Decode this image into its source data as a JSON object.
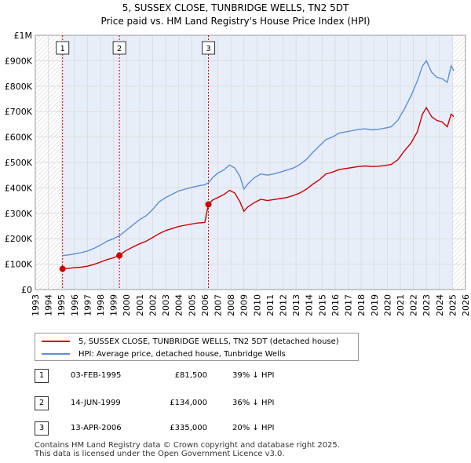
{
  "chart_data": {
    "type": "line",
    "title": "5, SUSSEX CLOSE, TUNBRIDGE WELLS, TN2 5DT",
    "subtitle": "Price paid vs. HM Land Registry's House Price Index (HPI)",
    "xlim": [
      1993,
      2026
    ],
    "ylim": [
      0,
      1000000
    ],
    "x_ticks": [
      "1993",
      "1994",
      "1995",
      "1996",
      "1997",
      "1998",
      "1999",
      "2000",
      "2001",
      "2002",
      "2003",
      "2004",
      "2005",
      "2006",
      "2007",
      "2008",
      "2009",
      "2010",
      "2011",
      "2012",
      "2013",
      "2014",
      "2015",
      "2016",
      "2017",
      "2018",
      "2019",
      "2020",
      "2021",
      "2022",
      "2023",
      "2024",
      "2025",
      "2026"
    ],
    "y_ticks": [
      {
        "value": 0,
        "label": "£0"
      },
      {
        "value": 100000,
        "label": "£100K"
      },
      {
        "value": 200000,
        "label": "£200K"
      },
      {
        "value": 300000,
        "label": "£300K"
      },
      {
        "value": 400000,
        "label": "£400K"
      },
      {
        "value": 500000,
        "label": "£500K"
      },
      {
        "value": 600000,
        "label": "£600K"
      },
      {
        "value": 700000,
        "label": "£700K"
      },
      {
        "value": 800000,
        "label": "£800K"
      },
      {
        "value": 900000,
        "label": "£900K"
      },
      {
        "value": 1000000,
        "label": "£1M"
      }
    ],
    "grid": true,
    "owned_period_shading": [
      1995.09,
      2025.0
    ],
    "series": [
      {
        "name": "5, SUSSEX CLOSE, TUNBRIDGE WELLS, TN2 5DT (detached house)",
        "color": "#cc0000",
        "x": [
          1995.09,
          1995.5,
          1996.0,
          1996.5,
          1997.0,
          1997.5,
          1998.0,
          1998.5,
          1999.0,
          1999.45,
          1999.9,
          2000.5,
          2001.0,
          2001.5,
          2002.0,
          2002.5,
          2003.0,
          2003.5,
          2004.0,
          2004.5,
          2005.0,
          2005.5,
          2006.0,
          2006.28,
          2006.6,
          2007.0,
          2007.5,
          2007.9,
          2008.3,
          2008.7,
          2009.0,
          2009.3,
          2009.8,
          2010.3,
          2010.8,
          2011.3,
          2011.8,
          2012.3,
          2012.8,
          2013.3,
          2013.8,
          2014.3,
          2014.8,
          2015.3,
          2015.8,
          2016.3,
          2016.8,
          2017.3,
          2017.8,
          2018.3,
          2018.8,
          2019.3,
          2019.8,
          2020.3,
          2020.8,
          2021.3,
          2021.8,
          2022.3,
          2022.7,
          2023.0,
          2023.4,
          2023.8,
          2024.2,
          2024.6,
          2024.9,
          2025.1
        ],
        "values": [
          81500,
          83000,
          86000,
          88000,
          92000,
          99000,
          108000,
          118000,
          125000,
          134000,
          152000,
          168000,
          180000,
          190000,
          205000,
          220000,
          232000,
          240000,
          248000,
          253000,
          258000,
          262000,
          264000,
          335000,
          352000,
          362000,
          375000,
          390000,
          380000,
          345000,
          308000,
          325000,
          342000,
          355000,
          350000,
          354000,
          358000,
          362000,
          370000,
          380000,
          395000,
          415000,
          432000,
          455000,
          462000,
          472000,
          476000,
          480000,
          484000,
          486000,
          484000,
          485000,
          488000,
          492000,
          510000,
          545000,
          575000,
          620000,
          690000,
          715000,
          680000,
          665000,
          660000,
          640000,
          690000,
          680000
        ]
      },
      {
        "name": "HPI: Average price, detached house, Tunbridge Wells",
        "color": "#5b8fd6",
        "x": [
          1995.09,
          1995.5,
          1996.0,
          1996.5,
          1997.0,
          1997.5,
          1998.0,
          1998.5,
          1999.0,
          1999.45,
          1999.9,
          2000.5,
          2001.0,
          2001.5,
          2002.0,
          2002.5,
          2003.0,
          2003.5,
          2004.0,
          2004.5,
          2005.0,
          2005.5,
          2006.0,
          2006.28,
          2006.6,
          2007.0,
          2007.5,
          2007.9,
          2008.3,
          2008.7,
          2009.0,
          2009.3,
          2009.8,
          2010.3,
          2010.8,
          2011.3,
          2011.8,
          2012.3,
          2012.8,
          2013.3,
          2013.8,
          2014.3,
          2014.8,
          2015.3,
          2015.8,
          2016.3,
          2016.8,
          2017.3,
          2017.8,
          2018.3,
          2018.8,
          2019.3,
          2019.8,
          2020.3,
          2020.8,
          2021.3,
          2021.8,
          2022.3,
          2022.7,
          2023.0,
          2023.4,
          2023.8,
          2024.2,
          2024.6,
          2024.9,
          2025.1
        ],
        "values": [
          134000,
          136000,
          140000,
          145000,
          152000,
          162000,
          175000,
          190000,
          200000,
          212000,
          230000,
          255000,
          275000,
          290000,
          315000,
          345000,
          362000,
          375000,
          388000,
          395000,
          402000,
          408000,
          412000,
          420000,
          440000,
          458000,
          472000,
          490000,
          478000,
          445000,
          395000,
          415000,
          440000,
          455000,
          450000,
          455000,
          462000,
          470000,
          478000,
          492000,
          512000,
          540000,
          565000,
          590000,
          600000,
          615000,
          620000,
          625000,
          630000,
          632000,
          628000,
          630000,
          635000,
          640000,
          665000,
          710000,
          760000,
          820000,
          880000,
          900000,
          855000,
          835000,
          830000,
          815000,
          880000,
          860000
        ]
      }
    ],
    "sales": [
      {
        "num": "1",
        "x": 1995.09,
        "value": 81500,
        "date": "03-FEB-1995",
        "price": "£81,500",
        "hpi": "39% ↓ HPI"
      },
      {
        "num": "2",
        "x": 1999.45,
        "value": 134000,
        "date": "14-JUN-1999",
        "price": "£134,000",
        "hpi": "36% ↓ HPI"
      },
      {
        "num": "3",
        "x": 2006.28,
        "value": 335000,
        "date": "13-APR-2006",
        "price": "£335,000",
        "hpi": "20% ↓ HPI"
      }
    ]
  },
  "legend": {
    "red_label": "5, SUSSEX CLOSE, TUNBRIDGE WELLS, TN2 5DT (detached house)",
    "blue_label": "HPI: Average price, detached house, Tunbridge Wells",
    "red_color": "#cc0000",
    "blue_color": "#5b8fd6"
  },
  "footer": {
    "line1": "Contains HM Land Registry data © Crown copyright and database right 2025.",
    "line2": "This data is licensed under the Open Government Licence v3.0."
  }
}
